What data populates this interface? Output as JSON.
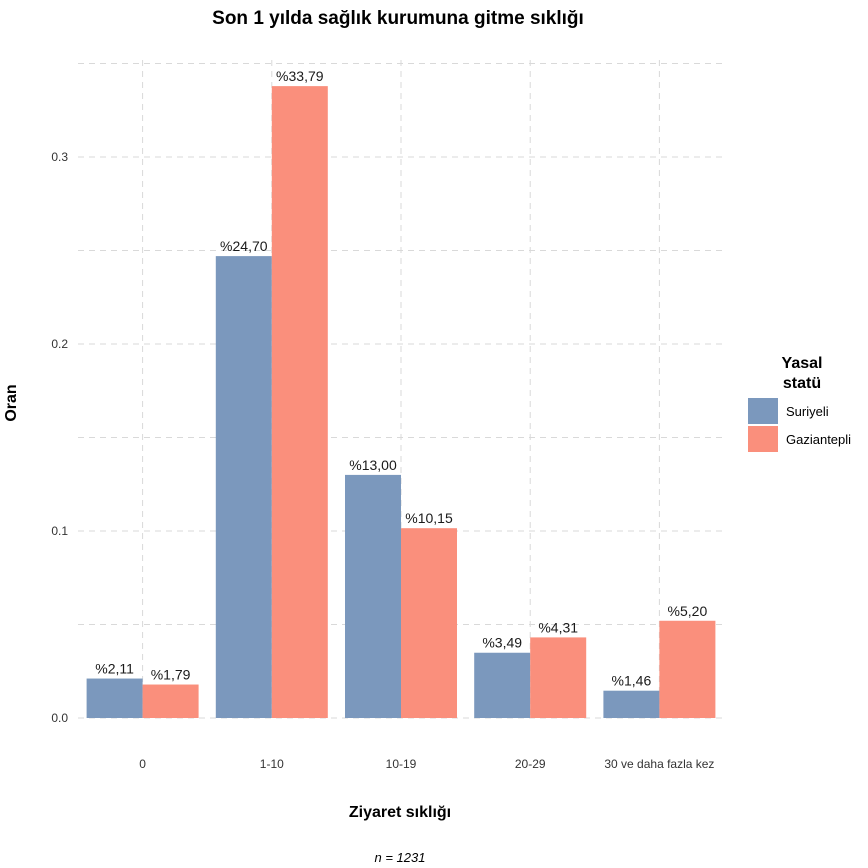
{
  "chart_data": {
    "type": "bar",
    "title": "Son 1 yılda sağlık kurumuna gitme sıklığı",
    "xlabel": "Ziyaret sıklığı",
    "ylabel": "Oran",
    "caption": "n = 1231",
    "categories": [
      "0",
      "1-10",
      "10-19",
      "20-29",
      "30 ve daha fazla kez"
    ],
    "series": [
      {
        "name": "Suriyeli",
        "color": "#7b98bd",
        "values": [
          0.0211,
          0.247,
          0.13,
          0.0349,
          0.0146
        ],
        "labels": [
          "%2,11",
          "%24,70",
          "%13,00",
          "%3,49",
          "%1,46"
        ]
      },
      {
        "name": "Gaziantepli",
        "color": "#fa8f7c",
        "values": [
          0.0179,
          0.3379,
          0.1015,
          0.0431,
          0.052
        ],
        "labels": [
          "%1,79",
          "%33,79",
          "%10,15",
          "%4,31",
          "%5,20"
        ]
      }
    ],
    "ylim": [
      0,
      0.35
    ],
    "yticks": [
      "0.0",
      "0.1",
      "0.2",
      "0.3"
    ],
    "ytick_values": [
      0,
      0.1,
      0.2,
      0.3
    ],
    "legend": {
      "title_line1": "Yasal",
      "title_line2": "statü",
      "position": "right"
    },
    "grid": true
  }
}
